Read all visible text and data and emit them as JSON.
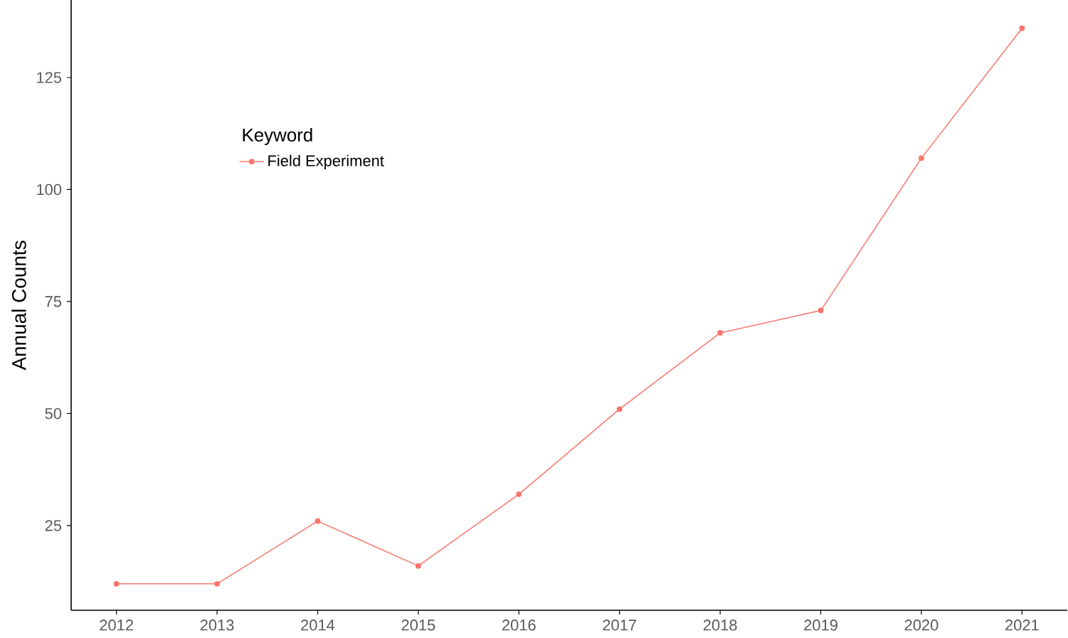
{
  "chart_data": {
    "type": "line",
    "ylabel": "Annual Counts",
    "legend_title": "Keyword",
    "x": [
      2012,
      2013,
      2014,
      2015,
      2016,
      2017,
      2018,
      2019,
      2020,
      2021
    ],
    "series": [
      {
        "name": "Field Experiment",
        "color": "#f8766d",
        "values": [
          12,
          12,
          26,
          16,
          32,
          51,
          68,
          73,
          107,
          136
        ]
      }
    ],
    "xlim": [
      2011.55,
      2021.45
    ],
    "ylim": [
      6.1,
      142.3
    ],
    "xticks": [
      2012,
      2013,
      2014,
      2015,
      2016,
      2017,
      2018,
      2019,
      2020,
      2021
    ],
    "yticks": [
      25,
      50,
      75,
      100,
      125
    ],
    "grid": false,
    "legend": "top left",
    "marker": "circle",
    "line_style": "solid"
  }
}
